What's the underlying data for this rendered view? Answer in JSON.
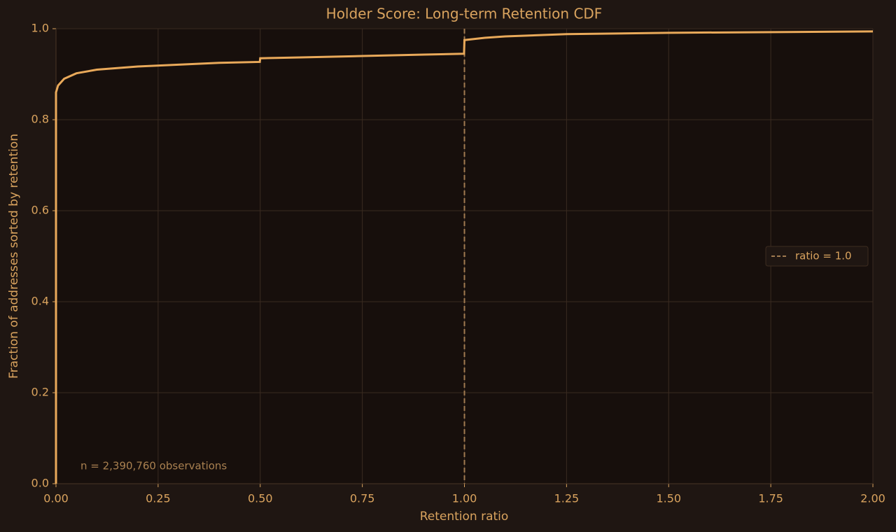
{
  "chart_data": {
    "type": "line",
    "title": "Holder Score: Long-term Retention CDF",
    "xlabel": "Retention ratio",
    "ylabel": "Fraction of addresses sorted by retention",
    "annotation": "n = 2,390,760 observations",
    "series": [
      {
        "color": "#e9a95a",
        "x": [
          0,
          0,
          0.005,
          0.02,
          0.05,
          0.1,
          0.2,
          0.3,
          0.4,
          0.499,
          0.5,
          0.6,
          0.75,
          0.9,
          0.999,
          1.0,
          1.05,
          1.1,
          1.25,
          1.5,
          2.0
        ],
        "values": [
          0,
          0.86,
          0.875,
          0.89,
          0.902,
          0.91,
          0.917,
          0.921,
          0.925,
          0.927,
          0.935,
          0.937,
          0.94,
          0.943,
          0.945,
          0.975,
          0.98,
          0.983,
          0.988,
          0.991,
          0.994
        ]
      }
    ],
    "vline": {
      "x": 1.0,
      "name": "ratio = 1.0",
      "color": "#a07a50"
    },
    "xlim": [
      0,
      2
    ],
    "ylim": [
      0,
      1
    ],
    "xticks": [
      {
        "value": 0,
        "label": "0.00"
      },
      {
        "value": 0.25,
        "label": "0.25"
      },
      {
        "value": 0.5,
        "label": "0.50"
      },
      {
        "value": 0.75,
        "label": "0.75"
      },
      {
        "value": 1,
        "label": "1.00"
      },
      {
        "value": 1.25,
        "label": "1.25"
      },
      {
        "value": 1.5,
        "label": "1.50"
      },
      {
        "value": 1.75,
        "label": "1.75"
      },
      {
        "value": 2,
        "label": "2.00"
      }
    ],
    "yticks": [
      {
        "value": 0,
        "label": "0.0"
      },
      {
        "value": 0.2,
        "label": "0.2"
      },
      {
        "value": 0.4,
        "label": "0.4"
      },
      {
        "value": 0.6,
        "label": "0.6"
      },
      {
        "value": 0.8,
        "label": "0.8"
      },
      {
        "value": 1,
        "label": "1.0"
      }
    ],
    "grid": true,
    "legend": "right"
  }
}
